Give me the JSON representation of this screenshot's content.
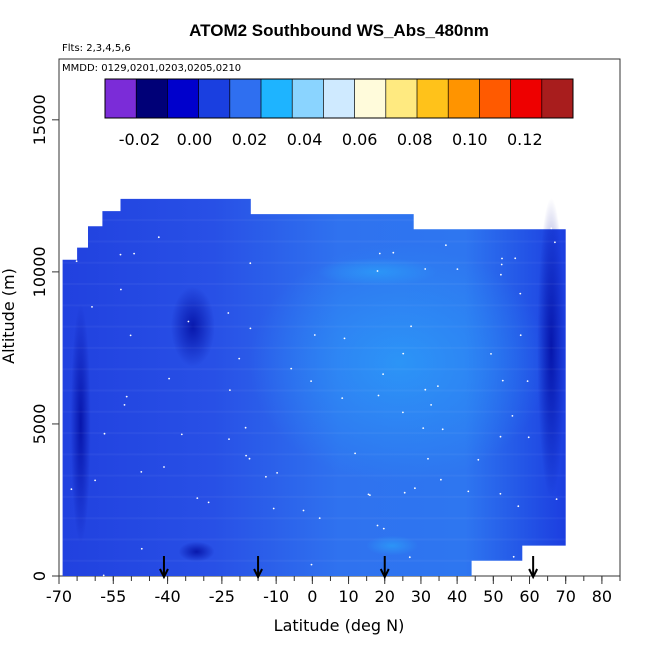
{
  "chart_data": {
    "type": "heatmap",
    "title": "ATOM2 Southbound WS_Abs_480nm",
    "flights_label": "Flts: 2,3,4,5,6",
    "dates_label": "MMDD: 0129,0201,0203,0205,0210",
    "xlabel": "Latitude (deg N)",
    "ylabel": "Altitude (m)",
    "xlim": [
      -70,
      85
    ],
    "ylim": [
      0,
      17000
    ],
    "x_ticks": [
      -70,
      -55,
      -40,
      -25,
      -10,
      0,
      10,
      20,
      30,
      40,
      50,
      60,
      70,
      80
    ],
    "x_ticks_labeled": [
      "-70",
      "-55",
      "-40",
      "-25",
      "-10",
      "0",
      "10",
      "20",
      "30",
      "40",
      "50",
      "60",
      "70",
      "80"
    ],
    "y_ticks": [
      0,
      5000,
      10000,
      15000
    ],
    "y_ticks_labeled": [
      "0",
      "5000",
      "10000",
      "15000"
    ],
    "colorbar": {
      "range": [
        -0.0325,
        0.1375
      ],
      "ticks": [
        -0.02,
        0.0,
        0.02,
        0.04,
        0.06,
        0.08,
        0.1,
        0.12
      ],
      "tick_labels": [
        "-0.02",
        "0.00",
        "0.02",
        "0.04",
        "0.06",
        "0.08",
        "0.10",
        "0.12"
      ],
      "colors": [
        "#7b2cd8",
        "#000077",
        "#0000cc",
        "#1a3fe0",
        "#2f6ff0",
        "#1eb4ff",
        "#8ad4ff",
        "#cfeaff",
        "#fffbdb",
        "#ffea80",
        "#ffc21a",
        "#ff9400",
        "#ff5a00",
        "#ee0000",
        "#a81d1d"
      ]
    },
    "value_color": "#3a6cf0",
    "arrow_latitudes": [
      -41,
      -15,
      20,
      61
    ]
  }
}
